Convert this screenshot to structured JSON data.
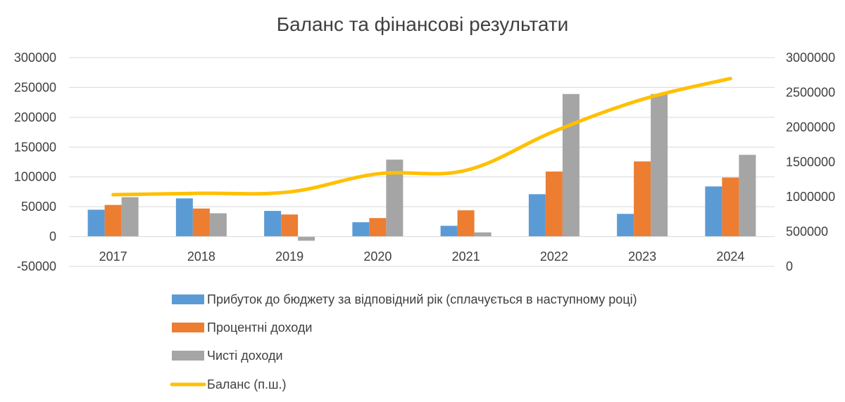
{
  "chart_data": {
    "type": "bar",
    "title": "Баланс та фінансові результати",
    "categories": [
      "2017",
      "2018",
      "2019",
      "2020",
      "2021",
      "2022",
      "2023",
      "2024"
    ],
    "series": [
      {
        "name": "Прибуток до бюджету за відповідний рік (сплачується в наступному році)",
        "type": "bar",
        "axis": "left",
        "color": "#5b9bd5",
        "values": [
          45000,
          64000,
          43000,
          24000,
          18000,
          71000,
          38000,
          84000
        ]
      },
      {
        "name": "Процентні доходи",
        "type": "bar",
        "axis": "left",
        "color": "#ed7d31",
        "values": [
          53000,
          47000,
          37000,
          31000,
          44000,
          109000,
          126000,
          99000
        ]
      },
      {
        "name": "Чисті доходи",
        "type": "bar",
        "axis": "left",
        "color": "#a5a5a5",
        "values": [
          66000,
          39000,
          -7000,
          129000,
          7000,
          239000,
          239000,
          137000
        ]
      },
      {
        "name": "Баланс (п.ш.)",
        "type": "line",
        "axis": "right",
        "color": "#ffc000",
        "values": [
          1030000,
          1050000,
          1070000,
          1330000,
          1380000,
          1940000,
          2400000,
          2700000
        ]
      }
    ],
    "left_axis": {
      "ylim": [
        -50000,
        300000
      ],
      "ticks": [
        "-50000",
        "0",
        "50000",
        "100000",
        "150000",
        "200000",
        "250000",
        "300000"
      ]
    },
    "right_axis": {
      "ylim": [
        0,
        3000000
      ],
      "ticks": [
        "0",
        "500000",
        "1000000",
        "1500000",
        "2000000",
        "2500000",
        "3000000"
      ]
    },
    "grid": true,
    "legend_position": "bottom"
  }
}
